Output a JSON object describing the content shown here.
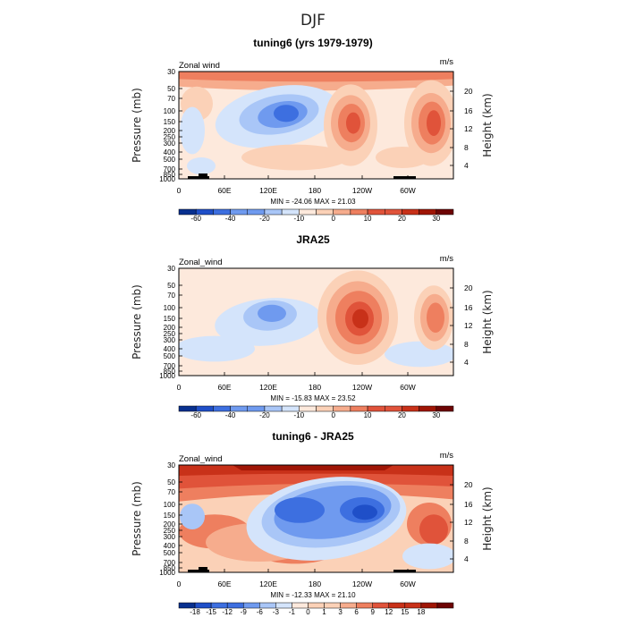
{
  "figure": {
    "title": "DJF"
  },
  "colors": {
    "panel1": [
      "#08308f",
      "#1f4fc8",
      "#3d6fe0",
      "#6f9aef",
      "#a9c6f7",
      "#d4e4fb",
      "#fde9dc",
      "#fbd1b7",
      "#f6ac8d",
      "#ee7f5f",
      "#e0533a",
      "#c83119",
      "#9f1505",
      "#6d0404"
    ],
    "panel3": [
      "#08308f",
      "#1f4fc8",
      "#3d6fe0",
      "#6f9aef",
      "#a9c6f7",
      "#d4e4fb",
      "#fde9dc",
      "#fbd1b7",
      "#f6ac8d",
      "#ee7f5f",
      "#e0533a",
      "#c83119",
      "#9f1505",
      "#6d0404"
    ]
  },
  "chart_data": [
    {
      "type": "heatmap",
      "title": "tuning6 (yrs 1979-1979)",
      "left_label": "Zonal wind",
      "units": "m/s",
      "ylabel": "Pressure (mb)",
      "ylabel_right": "Height (km)",
      "y_ticks": [
        "30",
        "50",
        "70",
        "100",
        "150",
        "200",
        "250",
        "300",
        "400",
        "500",
        "700",
        "850",
        "1000"
      ],
      "y_ticks_right": [
        "20",
        "16",
        "12",
        "8",
        "4"
      ],
      "x_ticks": [
        "0",
        "60E",
        "120E",
        "180",
        "120W",
        "60W"
      ],
      "stats": "MIN = -24.06   MAX =  21.03",
      "colorbar_labels": [
        "-60",
        "-40",
        "-20",
        "-10",
        "0",
        "10",
        "20",
        "30"
      ],
      "colorbar_levels": [
        "-70",
        "-60",
        "-50",
        "-40",
        "-30",
        "-20",
        "-10",
        "-5",
        "0",
        "5",
        "10",
        "15",
        "20",
        "25",
        "30",
        "35"
      ]
    },
    {
      "type": "heatmap",
      "title": "JRA25",
      "left_label": "Zonal_wind",
      "units": "m/s",
      "ylabel": "Pressure (mb)",
      "ylabel_right": "Height (km)",
      "y_ticks": [
        "30",
        "50",
        "70",
        "100",
        "150",
        "200",
        "250",
        "300",
        "400",
        "500",
        "700",
        "850",
        "1000"
      ],
      "y_ticks_right": [
        "20",
        "16",
        "12",
        "8",
        "4"
      ],
      "x_ticks": [
        "0",
        "60E",
        "120E",
        "180",
        "120W",
        "60W"
      ],
      "stats": "MIN = -15.83   MAX =  23.52",
      "colorbar_labels": [
        "-60",
        "-40",
        "-20",
        "-10",
        "0",
        "10",
        "20",
        "30"
      ]
    },
    {
      "type": "heatmap",
      "title": "tuning6 - JRA25",
      "left_label": "Zonal_wind",
      "units": "m/s",
      "ylabel": "Pressure (mb)",
      "ylabel_right": "Height (km)",
      "y_ticks": [
        "30",
        "50",
        "70",
        "100",
        "150",
        "200",
        "250",
        "300",
        "400",
        "500",
        "700",
        "850",
        "1000"
      ],
      "y_ticks_right": [
        "20",
        "16",
        "12",
        "8",
        "4"
      ],
      "x_ticks": [
        "0",
        "60E",
        "120E",
        "180",
        "120W",
        "60W"
      ],
      "stats": "MIN = -12.33   MAX =  21.10",
      "colorbar_labels": [
        "-18",
        "-15",
        "-12",
        "-9",
        "-6",
        "-3",
        "-1",
        "0",
        "1",
        "3",
        "6",
        "9",
        "12",
        "15",
        "18"
      ]
    }
  ]
}
